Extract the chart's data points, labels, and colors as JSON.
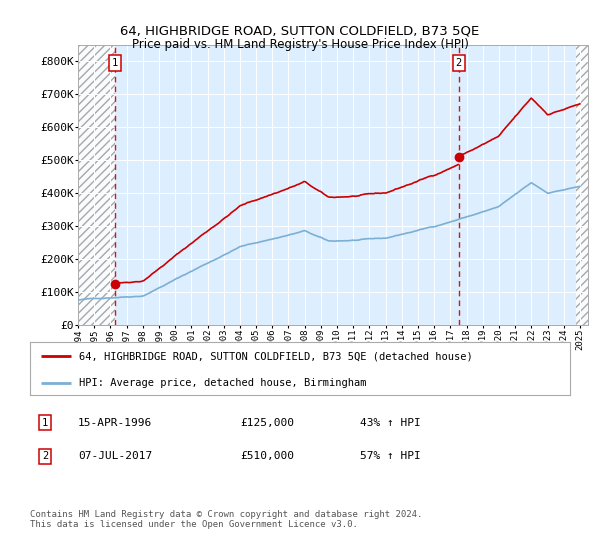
{
  "title1": "64, HIGHBRIDGE ROAD, SUTTON COLDFIELD, B73 5QE",
  "title2": "Price paid vs. HM Land Registry's House Price Index (HPI)",
  "ylim": [
    0,
    850000
  ],
  "yticks": [
    0,
    100000,
    200000,
    300000,
    400000,
    500000,
    600000,
    700000,
    800000
  ],
  "ytick_labels": [
    "£0",
    "£100K",
    "£200K",
    "£300K",
    "£400K",
    "£500K",
    "£600K",
    "£700K",
    "£800K"
  ],
  "xlim_start": 1994.0,
  "xlim_end": 2025.5,
  "purchase1_year": 1996.29,
  "purchase1_price": 125000,
  "purchase2_year": 2017.52,
  "purchase2_price": 510000,
  "hpi_color": "#7bafd4",
  "price_color": "#cc0000",
  "marker_color": "#cc0000",
  "bg_color": "#ddeeff",
  "legend_label1": "64, HIGHBRIDGE ROAD, SUTTON COLDFIELD, B73 5QE (detached house)",
  "legend_label2": "HPI: Average price, detached house, Birmingham",
  "note1_num": "1",
  "note1_date": "15-APR-1996",
  "note1_price": "£125,000",
  "note1_hpi": "43% ↑ HPI",
  "note2_num": "2",
  "note2_date": "07-JUL-2017",
  "note2_price": "£510,000",
  "note2_hpi": "57% ↑ HPI",
  "footer": "Contains HM Land Registry data © Crown copyright and database right 2024.\nThis data is licensed under the Open Government Licence v3.0."
}
